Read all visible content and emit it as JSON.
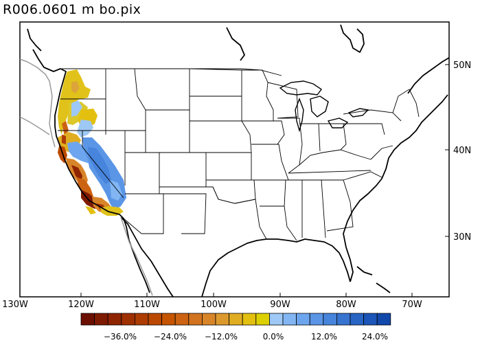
{
  "title": "R006.0601  m  bo.pix",
  "map": {
    "projection": "lat-lon",
    "lon_range": [
      -130,
      -65
    ],
    "lat_range": [
      23,
      55
    ],
    "x_ticks": [
      "130W",
      "120W",
      "110W",
      "100W",
      "90W",
      "80W",
      "70W"
    ],
    "y_ticks": [
      "50N",
      "40N",
      "30N"
    ],
    "shaded_region": "US West Coast (California, Oregon, Washington)",
    "icons": {
      "coastline": "coast-line",
      "borders": "state-borders"
    }
  },
  "colorbar": {
    "labels": [
      "−36.0%",
      "−24.0%",
      "−12.0%",
      "0.0%",
      "12.0%",
      "24.0%"
    ],
    "colors": [
      "#6b0f00",
      "#7e1a00",
      "#8f2500",
      "#9f3000",
      "#ad3c00",
      "#bb4800",
      "#c55500",
      "#cc6312",
      "#d27320",
      "#d8852a",
      "#dc9a2e",
      "#e0ad22",
      "#e3c010",
      "#dcd000",
      "#9ec8f5",
      "#82b6f3",
      "#6da6ee",
      "#5a95e6",
      "#4784dc",
      "#3774d0",
      "#2864c4",
      "#1c55b8",
      "#1148aa"
    ]
  }
}
